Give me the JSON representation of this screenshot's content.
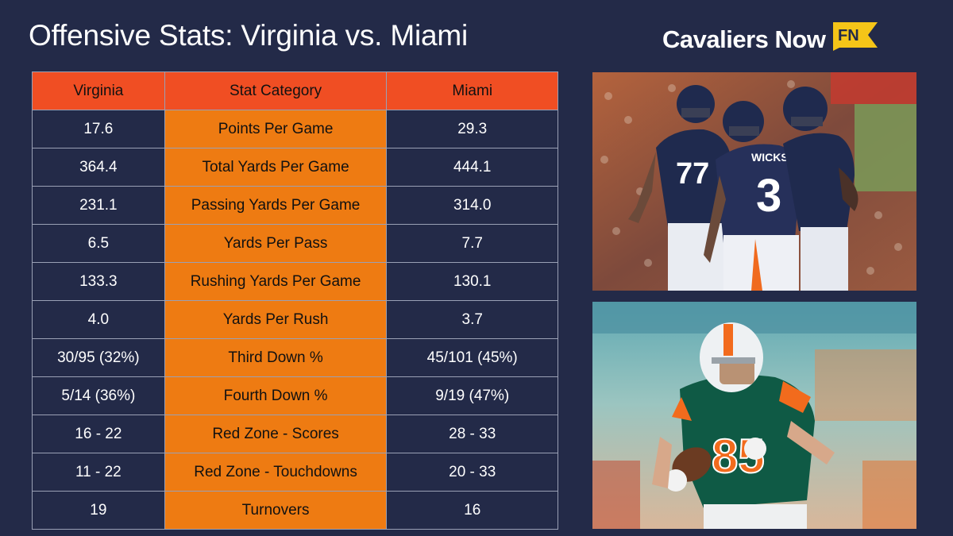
{
  "title": "Offensive Stats: Virginia vs. Miami",
  "brand": {
    "name": "Cavaliers Now",
    "badge": "FN"
  },
  "table": {
    "headers": [
      "Virginia",
      "Stat Category",
      "Miami"
    ],
    "rows": [
      {
        "virginia": "17.6",
        "category": "Points Per Game",
        "miami": "29.3"
      },
      {
        "virginia": "364.4",
        "category": "Total Yards Per Game",
        "miami": "444.1"
      },
      {
        "virginia": "231.1",
        "category": "Passing Yards Per Game",
        "miami": "314.0"
      },
      {
        "virginia": "6.5",
        "category": "Yards Per Pass",
        "miami": "7.7"
      },
      {
        "virginia": "133.3",
        "category": "Rushing Yards Per Game",
        "miami": "130.1"
      },
      {
        "virginia": "4.0",
        "category": "Yards Per Rush",
        "miami": "3.7"
      },
      {
        "virginia": "30/95 (32%)",
        "category": "Third Down %",
        "miami": "45/101 (45%)"
      },
      {
        "virginia": "5/14 (36%)",
        "category": "Fourth Down %",
        "miami": "9/19 (47%)"
      },
      {
        "virginia": "16 - 22",
        "category": "Red Zone - Scores",
        "miami": "28 - 33"
      },
      {
        "virginia": "11 - 22",
        "category": "Red Zone - Touchdowns",
        "miami": "20 - 33"
      },
      {
        "virginia": "19",
        "category": "Turnovers",
        "miami": "16"
      }
    ]
  },
  "photos": {
    "top": {
      "jersey_numbers": [
        "77",
        "3"
      ],
      "nameplate": "WICKS"
    },
    "bottom": {
      "jersey_number": "85"
    }
  },
  "colors": {
    "background": "#232a48",
    "header_fill": "#f04e23",
    "category_fill": "#ee7b12",
    "badge_yellow": "#f5c518"
  }
}
